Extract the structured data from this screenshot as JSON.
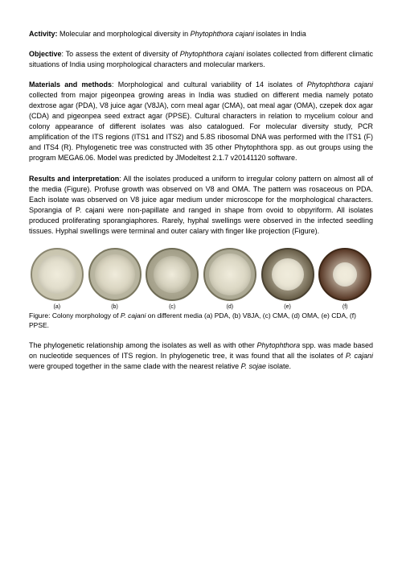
{
  "activity": {
    "heading": "Activity:",
    "text_pre": " Molecular and morphological diversity in ",
    "text_italic": "Phytophthora cajani",
    "text_post": " isolates in India"
  },
  "objective": {
    "heading": "Objective",
    "text_pre": ": To assess the extent of diversity of ",
    "text_italic": "Phytophthora cajani",
    "text_post": " isolates collected from different climatic situations of India using morphological characters and molecular markers."
  },
  "materials": {
    "heading": "Materials and methods",
    "text_pre": ": Morphological and cultural variability of 14 isolates of ",
    "text_italic": "Phytophthora cajani",
    "text_post": " collected from major pigeonpea growing areas in India was studied on different media namely potato dextrose agar (PDA), V8 juice agar (V8JA), corn meal agar (CMA), oat meal agar (OMA), czepek dox agar (CDA) and pigeonpea seed extract agar (PPSE). Cultural characters in relation to mycelium colour and colony appearance of different isolates was also catalogued. For molecular diversity study, PCR amplification of the ITS regions (ITS1 and ITS2) and 5.8S ribosomal DNA was performed with the ITS1 (F) and ITS4 (R). Phylogenetic tree was constructed with 35 other Phytophthora spp. as out groups using the program MEGA6.06. Model was predicted by JModeltest 2.1.7 v20141120 software."
  },
  "results": {
    "heading": "Results and interpretation",
    "text": ":  All the isolates produced a uniform to irregular colony pattern on almost all of the media (Figure). Profuse growth was observed on V8 and OMA. The pattern was rosaceous on PDA.  Each isolate was observed on V8 juice agar medium under microscope for the morphological characters. Sporangia of P. cajani were non-papillate and ranged in shape from ovoid to obpyriform. All isolates produced proliferating sporangiaphores. Rarely, hyphal swellings were observed in the infected seedling tissues. Hyphal swellings were terminal and outer calary with finger like projection (Figure)."
  },
  "figure": {
    "dishes": [
      {
        "label": "(a)",
        "bg": "#c8c4ae",
        "inner_bg": "#d9d5c2",
        "inner_size": 48,
        "border": "#8a8670"
      },
      {
        "label": "(b)",
        "bg": "#b5b29d",
        "inner_bg": "#cfcab4",
        "inner_size": 50,
        "border": "#7a775f"
      },
      {
        "label": "(c)",
        "bg": "#a29e88",
        "inner_bg": "#c4c0aa",
        "inner_size": 46,
        "border": "#6e6b55"
      },
      {
        "label": "(d)",
        "bg": "#aaa792",
        "inner_bg": "#d0ccb7",
        "inner_size": 52,
        "border": "#75715b"
      },
      {
        "label": "(e)",
        "bg": "#6a604a",
        "inner_bg": "#e6e1cf",
        "inner_size": 40,
        "border": "#4a4232"
      },
      {
        "label": "(f)",
        "bg": "#5a3a28",
        "inner_bg": "#ece6d6",
        "inner_size": 30,
        "border": "#3e2818"
      }
    ],
    "caption_pre": "Figure: Colony morphology of ",
    "caption_italic": "P. cajani",
    "caption_post": " on different media (a) PDA, (b) V8JA, (c) CMA, (d) OMA, (e) CDA, (f) PPSE."
  },
  "phylo": {
    "text_1": "The phylogenetic relationship among the isolates as well as with other ",
    "text_italic1": "Phytophthora",
    "text_2": " spp. was made based on nucleotide sequences of ITS region. In phylogenetic tree, it was found that all the isolates of ",
    "text_italic2": "P. cajani",
    "text_3": " were grouped together in the same clade with the nearest relative ",
    "text_italic3": "P. sojae",
    "text_4": " isolate."
  }
}
